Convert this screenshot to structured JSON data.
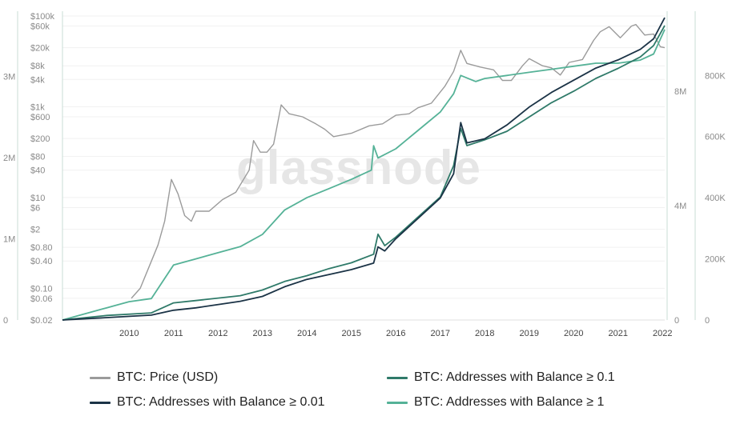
{
  "chart_data": {
    "type": "line",
    "watermark": "glassnode",
    "x_ticks": [
      "2010",
      "2011",
      "2012",
      "2013",
      "2014",
      "2015",
      "2016",
      "2017",
      "2018",
      "2019",
      "2020",
      "2021",
      "2022"
    ],
    "y_axes": {
      "price_log": {
        "scale": "log",
        "ticks": [
          "$100k",
          "$60k",
          "$20k",
          "$8k",
          "$4k",
          "$1k",
          "$600",
          "$200",
          "$80",
          "$40",
          "$10",
          "$6",
          "$2",
          "$0.80",
          "$0.40",
          "$0.10",
          "$0.06",
          "$0.02"
        ],
        "tick_values": [
          100000,
          60000,
          20000,
          8000,
          4000,
          1000,
          600,
          200,
          80,
          40,
          10,
          6,
          2,
          0.8,
          0.4,
          0.1,
          0.06,
          0.02
        ],
        "range": [
          0.02,
          100000
        ]
      },
      "far_left": {
        "ticks": [
          "3M",
          "2M",
          "1M",
          "0"
        ],
        "tick_values": [
          3000000,
          2000000,
          1000000,
          0
        ],
        "range": [
          0,
          3800000
        ]
      },
      "inner_right": {
        "ticks": [
          "8M",
          "4M",
          "0"
        ],
        "tick_values": [
          8000000,
          4000000,
          0
        ],
        "range": [
          0,
          10800000
        ]
      },
      "far_right": {
        "ticks": [
          "800K",
          "600K",
          "400K",
          "200K",
          "0"
        ],
        "tick_values": [
          800000,
          600000,
          400000,
          200000,
          0
        ],
        "range": [
          0,
          1010000
        ]
      }
    },
    "series": [
      {
        "name": "BTC: Price (USD)",
        "color": "#9b9b9b",
        "axis": "price_log",
        "points": [
          [
            2010.55,
            0.06
          ],
          [
            2010.75,
            0.1
          ],
          [
            2010.95,
            0.3
          ],
          [
            2011.15,
            0.9
          ],
          [
            2011.3,
            3
          ],
          [
            2011.45,
            25
          ],
          [
            2011.6,
            12
          ],
          [
            2011.75,
            4
          ],
          [
            2011.9,
            3
          ],
          [
            2012.0,
            5
          ],
          [
            2012.3,
            5
          ],
          [
            2012.6,
            9
          ],
          [
            2012.9,
            13
          ],
          [
            2013.2,
            40
          ],
          [
            2013.3,
            180
          ],
          [
            2013.45,
            100
          ],
          [
            2013.6,
            100
          ],
          [
            2013.75,
            150
          ],
          [
            2013.92,
            1100
          ],
          [
            2014.1,
            700
          ],
          [
            2014.4,
            600
          ],
          [
            2014.7,
            420
          ],
          [
            2014.9,
            320
          ],
          [
            2015.1,
            220
          ],
          [
            2015.5,
            260
          ],
          [
            2015.9,
            380
          ],
          [
            2016.2,
            420
          ],
          [
            2016.5,
            650
          ],
          [
            2016.8,
            700
          ],
          [
            2017.0,
            950
          ],
          [
            2017.3,
            1200
          ],
          [
            2017.6,
            2800
          ],
          [
            2017.8,
            6000
          ],
          [
            2017.96,
            17500
          ],
          [
            2018.1,
            9000
          ],
          [
            2018.4,
            7500
          ],
          [
            2018.7,
            6500
          ],
          [
            2018.9,
            3800
          ],
          [
            2019.1,
            3800
          ],
          [
            2019.35,
            8000
          ],
          [
            2019.5,
            11500
          ],
          [
            2019.8,
            8000
          ],
          [
            2020.0,
            7200
          ],
          [
            2020.2,
            5000
          ],
          [
            2020.4,
            9500
          ],
          [
            2020.7,
            11000
          ],
          [
            2020.95,
            29000
          ],
          [
            2021.1,
            45000
          ],
          [
            2021.3,
            58000
          ],
          [
            2021.55,
            33000
          ],
          [
            2021.8,
            60000
          ],
          [
            2021.9,
            65000
          ],
          [
            2022.1,
            38000
          ],
          [
            2022.3,
            40000
          ],
          [
            2022.45,
            21000
          ],
          [
            2022.55,
            20000
          ]
        ]
      },
      {
        "name": "BTC: Addresses with Balance ≥ 0.1",
        "color": "#2f7a69",
        "axis": "inner_right",
        "points": [
          [
            2009.0,
            0
          ],
          [
            2010.0,
            160000
          ],
          [
            2011.0,
            250000
          ],
          [
            2011.5,
            600000
          ],
          [
            2012.0,
            680000
          ],
          [
            2013.0,
            850000
          ],
          [
            2013.5,
            1050000
          ],
          [
            2014.0,
            1350000
          ],
          [
            2014.5,
            1550000
          ],
          [
            2015.0,
            1800000
          ],
          [
            2015.5,
            2000000
          ],
          [
            2016.0,
            2300000
          ],
          [
            2016.1,
            3000000
          ],
          [
            2016.25,
            2600000
          ],
          [
            2016.5,
            2900000
          ],
          [
            2017.0,
            3600000
          ],
          [
            2017.5,
            4300000
          ],
          [
            2017.8,
            5400000
          ],
          [
            2017.96,
            6700000
          ],
          [
            2018.1,
            6100000
          ],
          [
            2018.5,
            6300000
          ],
          [
            2019.0,
            6600000
          ],
          [
            2019.5,
            7100000
          ],
          [
            2020.0,
            7600000
          ],
          [
            2020.5,
            8000000
          ],
          [
            2021.0,
            8450000
          ],
          [
            2021.5,
            8800000
          ],
          [
            2022.0,
            9200000
          ],
          [
            2022.3,
            9600000
          ],
          [
            2022.55,
            10300000
          ]
        ]
      },
      {
        "name": "BTC: Addresses with Balance ≥ 0.01",
        "color": "#1b3346",
        "axis": "far_left",
        "points": [
          [
            2009.0,
            0
          ],
          [
            2010.0,
            30000
          ],
          [
            2011.0,
            60000
          ],
          [
            2011.5,
            120000
          ],
          [
            2012.0,
            150000
          ],
          [
            2013.0,
            230000
          ],
          [
            2013.5,
            290000
          ],
          [
            2014.0,
            410000
          ],
          [
            2014.5,
            500000
          ],
          [
            2015.0,
            560000
          ],
          [
            2015.5,
            620000
          ],
          [
            2016.0,
            700000
          ],
          [
            2016.1,
            900000
          ],
          [
            2016.25,
            850000
          ],
          [
            2016.5,
            1000000
          ],
          [
            2017.0,
            1250000
          ],
          [
            2017.5,
            1500000
          ],
          [
            2017.8,
            1800000
          ],
          [
            2017.96,
            2430000
          ],
          [
            2018.1,
            2180000
          ],
          [
            2018.5,
            2230000
          ],
          [
            2019.0,
            2400000
          ],
          [
            2019.5,
            2620000
          ],
          [
            2020.0,
            2800000
          ],
          [
            2020.5,
            2950000
          ],
          [
            2021.0,
            3100000
          ],
          [
            2021.5,
            3200000
          ],
          [
            2022.0,
            3330000
          ],
          [
            2022.3,
            3460000
          ],
          [
            2022.55,
            3720000
          ]
        ]
      },
      {
        "name": "BTC: Addresses with Balance ≥ 1",
        "color": "#55b297",
        "axis": "far_right",
        "points": [
          [
            2009.0,
            0
          ],
          [
            2010.0,
            40000
          ],
          [
            2010.5,
            60000
          ],
          [
            2011.0,
            70000
          ],
          [
            2011.5,
            180000
          ],
          [
            2012.0,
            200000
          ],
          [
            2012.5,
            220000
          ],
          [
            2013.0,
            240000
          ],
          [
            2013.5,
            280000
          ],
          [
            2014.0,
            360000
          ],
          [
            2014.5,
            400000
          ],
          [
            2015.0,
            430000
          ],
          [
            2015.5,
            460000
          ],
          [
            2015.95,
            490000
          ],
          [
            2016.0,
            570000
          ],
          [
            2016.1,
            530000
          ],
          [
            2016.5,
            560000
          ],
          [
            2017.0,
            620000
          ],
          [
            2017.5,
            680000
          ],
          [
            2017.8,
            740000
          ],
          [
            2017.96,
            800000
          ],
          [
            2018.3,
            780000
          ],
          [
            2018.5,
            790000
          ],
          [
            2019.0,
            800000
          ],
          [
            2019.5,
            810000
          ],
          [
            2020.0,
            820000
          ],
          [
            2020.5,
            830000
          ],
          [
            2021.0,
            840000
          ],
          [
            2021.5,
            840000
          ],
          [
            2022.0,
            850000
          ],
          [
            2022.3,
            870000
          ],
          [
            2022.55,
            950000
          ]
        ]
      }
    ],
    "legend": [
      {
        "label": "BTC: Price (USD)",
        "color": "#9b9b9b",
        "position": "bottom-left"
      },
      {
        "label": "BTC: Addresses with Balance ≥ 0.1",
        "color": "#2f7a69",
        "position": "bottom-right"
      },
      {
        "label": "BTC: Addresses with Balance ≥ 0.01",
        "color": "#1b3346",
        "position": "bottom-left"
      },
      {
        "label": "BTC: Addresses with Balance ≥ 1",
        "color": "#55b297",
        "position": "bottom-right"
      }
    ]
  }
}
